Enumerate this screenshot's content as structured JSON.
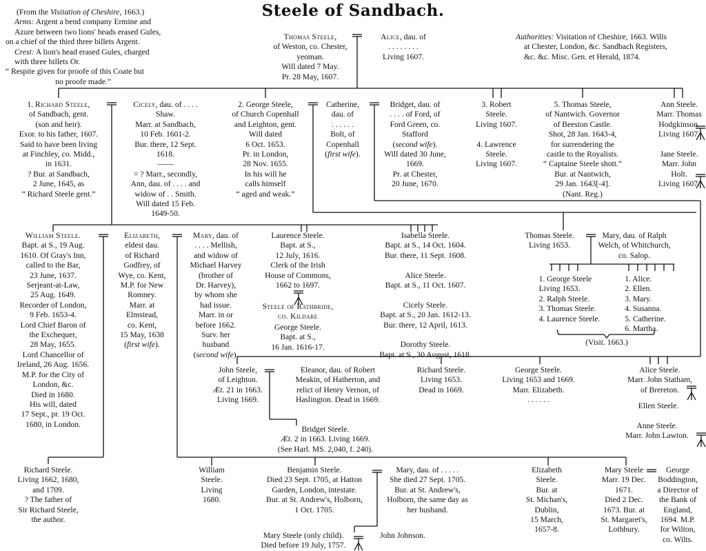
{
  "title": "Steele of Sandbach.",
  "intro": [
    [
      "(From the ",
      {
        "em": "Visitation of Cheshire"
      },
      ", 1663.)"
    ],
    [
      {
        "em": "Arms:"
      },
      " Argent a bend company Ermine and"
    ],
    "Azure between two lions' heads erased Gules,",
    "on a chief of the third three billets Argent.",
    [
      {
        "em": "Crest:"
      },
      " A lion's head erased Gules, charged"
    ],
    "with three billets Or.",
    "“ Respite given for proofe of this Coate but",
    "no proofe made.”"
  ],
  "authorities": [
    [
      {
        "em": "Authorities:"
      },
      " Visitation of Cheshire, 1663.  Wills"
    ],
    "at Chester, London, &c.  Sandbach Registers,",
    "&c. &c.   Misc. Gen. et Herald, 1874."
  ],
  "people": {
    "thomas_weston": [
      [
        {
          "sc": "Thomas Steele,"
        }
      ],
      "of Weston, co. Chester,",
      "yeoman.",
      "Will dated 7 May.",
      "Pr. 28 May, 1607."
    ],
    "alice_wife": [
      [
        {
          "sc": "Alice"
        },
        ", dau. of"
      ],
      ". . . . . . . .",
      "Living 1607."
    ],
    "richard_sandbach": [
      [
        "1. ",
        {
          "sc": "Richard Steele,"
        }
      ],
      "of Sandbach, gent.",
      "(son and heir).",
      "Exor. to his father, 1607.",
      "Said to have been living",
      "at Finchley, co. Midd.,",
      "in 1631.",
      "? Bur. at Sandbach,",
      "2 June, 1645, as",
      "“ Richard Steele gent.”"
    ],
    "cicely_shaw": [
      [
        {
          "sc": "Cicely"
        },
        ", dau. of . . . ."
      ],
      "Shaw.",
      "Marr. at Sandbach,",
      "10 Feb. 1601-2.",
      "Bur. there, 12 Sept.",
      "1618.",
      "——",
      "= ? Marr., secondly,",
      "Ann, dau. of . . . . and",
      "widow of . . Smith.",
      "Will dated 15 Feb.",
      "1649-50."
    ],
    "george_copenhall": [
      "2. George Steele,",
      "of Church Copenhall",
      "and Leighton, gent.",
      "Will dated",
      "6 Oct. 1653.",
      "Pr. in London,",
      "28 Nov. 1655.",
      "In his will he",
      "calls himself",
      "“ aged and weak.”"
    ],
    "catherine_bolt": [
      "Catherine,",
      "dau. of",
      ". . . . . .",
      "Bolt, of",
      "Copenhall",
      [
        "(",
        {
          "em": "first wife"
        },
        ")."
      ]
    ],
    "bridget_ford": [
      "Bridget, dau. of",
      ". . . . of Ford, of",
      "Ford Green, co.",
      "Stafford",
      [
        "(",
        {
          "em": "second wife"
        },
        ")."
      ],
      "Will dated 30 June,",
      "1669.",
      "Pr. at Chester,",
      "20 June, 1670."
    ],
    "robert_lawrence": [
      "3. Robert",
      "Steele.",
      "Living 1607.",
      "",
      "4. Lawrence",
      "Steele.",
      "Living 1607."
    ],
    "thomas_nantwich": [
      "5. Thomas Steele,",
      "of Nantwich.  Governor",
      "of Beeston Castle.",
      "Shot, 28 Jan. 1643-4,",
      "for surrendering the",
      "castle to the Royalists.",
      "“ Captaine Steele shott.”",
      "Bur. at Nantwich,",
      "29 Jan. 1643[-4].",
      "(Nant. Reg.)"
    ],
    "ann_jane": [
      "Ann Steele.",
      "Marr. Thomas",
      "Hodgkinson.",
      "Living 1607.",
      "",
      "Jane Steele.",
      "Marr. John",
      "Holt.",
      "Living 1607."
    ],
    "william": [
      [
        {
          "sc": "William Steele."
        }
      ],
      "Bapt. at S., 19 Aug.",
      "1610.  Of Gray's Inn,",
      "called to the Bar,",
      "23 June, 1637.",
      "Serjeant-at-Law,",
      "25 Aug. 1649.",
      "Recorder of London,",
      "9 Feb. 1653-4.",
      "Lord Chief Baron of",
      "the Exchequer,",
      "28 May, 1655.",
      "Lord Chancellor of",
      "Ireland, 26 Aug. 1656.",
      "M.P. for the City of",
      "London, &c.",
      "Died in 1680.",
      "His will, dated",
      "17 Sept., pr. 19 Oct.",
      "1680, in London."
    ],
    "elizabeth_godfrey": [
      [
        {
          "sc": "Elizabeth"
        },
        ","
      ],
      "eldest dau.",
      "of Richard",
      "Godfrey, of",
      "Wye, co. Kent,",
      "M.P. for New",
      "Romney.",
      "Marr. at",
      "Elmstead,",
      "co. Kent,",
      "15 May, 1638",
      [
        "(",
        {
          "em": "first wife"
        },
        ")."
      ]
    ],
    "mary_mellish": [
      [
        {
          "sc": "Mary"
        },
        ", dau. of"
      ],
      ". . . . Mellish,",
      "and widow of",
      "Michael Harvey",
      "(brother of",
      "Dr. Harvey),",
      "by whom she",
      "had issue.",
      "Marr. in or",
      "before 1662.",
      "Surv. her",
      "husband",
      [
        "(",
        {
          "em": "second wife"
        },
        ")."
      ]
    ],
    "laurence": [
      "Laurence Steele.",
      "Bapt. at S.,",
      "12 July, 1616.",
      "Clerk of the Irish",
      "House of Commons,",
      "1662 to 1697."
    ],
    "rathbride": [
      [
        {
          "sc": "Steele of Rathbride,"
        }
      ],
      [
        {
          "sc": "co. Kildare"
        }
      ]
    ],
    "george_1616": [
      "George Steele.",
      "Bapt. at S.,",
      "16 Jan. 1616-17."
    ],
    "daughters_row3": [
      "Isabella Steele.",
      "Bapt. at S., 14 Oct. 1604.",
      "Bur. there, 11 Sept. 1608.",
      "",
      "Alice Steele.",
      "Bapt. at S., 11 Oct. 1607.",
      "",
      "Cicely Steele.",
      "Bapt. at S., 20 Jan. 1612-13.",
      "Bur. there, 12 April, 1613.",
      "",
      "Dorothy Steele.",
      "Bapt. at S., 30 August, 1618."
    ],
    "thomas_1653": [
      "Thomas Steele.",
      "Living 1653."
    ],
    "mary_welch": [
      "Mary, dau. of Ralph",
      "Welch, of Whitchurch,",
      "co. Salop."
    ],
    "sons_1663": [
      "1. George Steele",
      "Living 1653.",
      "2. Ralph Steele.",
      "3. Thomas Steele.",
      "4. Laurence Steele."
    ],
    "daughters_1663": [
      "1. Alice.",
      "2. Ellen.",
      "3. Mary.",
      "4. Susanna.",
      "5. Catherine.",
      "6. Martha."
    ],
    "visit_note": [
      "(Visit. 1663.)"
    ],
    "john_leighton": [
      "John Steele,",
      "of Leighton.",
      [
        {
          "em": "Æt."
        },
        " 21 in 1663."
      ],
      "Living 1669."
    ],
    "eleanor_meakin": [
      "Eleanor, dau. of Robert",
      "Meakin, of Hatherton, and",
      "relict of Henry Vernon, of",
      "Haslington.  Dead in 1669."
    ],
    "bridget_1663": [
      "Bridget Steele.",
      [
        {
          "em": "Æt."
        },
        " 2 in 1663.   Living 1669."
      ],
      "(See Harl. MS. 2,040, f. 240)."
    ],
    "richard_1653": [
      "Richard Steele.",
      "Living 1653.",
      "Dead in 1669."
    ],
    "george_1653": [
      "George Steele.",
      "Living 1653 and 1669.",
      "Marr. Elizabeth.",
      ".   .   .   .   .   ."
    ],
    "alice_statham": [
      "Alice Steele.",
      "Marr. John Statham,",
      "of Brereton."
    ],
    "ellen": [
      "Ellen Steele."
    ],
    "anne_lawton": [
      "Anne Steele.",
      "Marr. John Lawton."
    ],
    "richard_1662": [
      "Richard Steele.",
      "Living 1662, 1680,",
      "and 1709.",
      "? The father of",
      "Sir Richard Steele,",
      "the author."
    ],
    "william_1680": [
      "William",
      "Steele.",
      "Living",
      "1680."
    ],
    "benjamin": [
      "Benjamin Steele.",
      "Died 23 Sept. 1705, at Hatton",
      "Garden, London, intestate.",
      "Bur. at St. Andrew's, Holborn,",
      "1 Oct. 1705."
    ],
    "mary_benjamin_wife": [
      "Mary, dau. of . . . . .",
      "She died 27 Sept. 1705.",
      "Bur. at St. Andrew's,",
      "Holborn, the same day as",
      "her husband."
    ],
    "mary_only_child": [
      "Mary Steele (only child).",
      "Died before 19 July, 1757."
    ],
    "john_johnson": [
      "John Johnson."
    ],
    "elizabeth_dublin": [
      "Elizabeth",
      "Steele.",
      "Bur. at",
      "St. Michan's,",
      "Dublin,",
      "15 March,",
      "1657-8."
    ],
    "mary_boddington": [
      "Mary Steele",
      "Marr. 19 Dec.",
      "1671.",
      "Died 2 Dec.",
      "1673.  Bur. at",
      "St. Margaret's,",
      "Lothbury."
    ],
    "george_boddington": [
      "George",
      "Boddington,",
      "a Director of",
      "the Bank of",
      "England,",
      "1694.  M.P.",
      "for Wilton,",
      "co. Wilts."
    ]
  }
}
